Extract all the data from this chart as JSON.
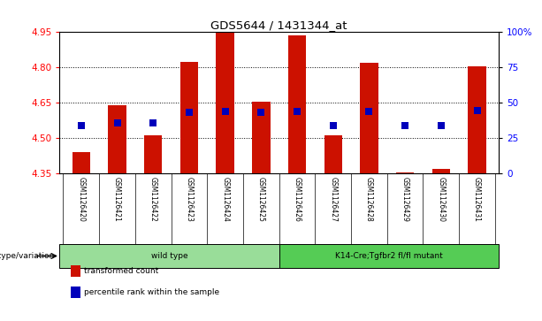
{
  "title": "GDS5644 / 1431344_at",
  "samples": [
    "GSM1126420",
    "GSM1126421",
    "GSM1126422",
    "GSM1126423",
    "GSM1126424",
    "GSM1126425",
    "GSM1126426",
    "GSM1126427",
    "GSM1126428",
    "GSM1126429",
    "GSM1126430",
    "GSM1126431"
  ],
  "bar_values": [
    4.44,
    4.638,
    4.51,
    4.825,
    4.95,
    4.655,
    4.935,
    4.51,
    4.82,
    4.355,
    4.37,
    4.805
  ],
  "percentile_values": [
    4.553,
    4.563,
    4.563,
    4.608,
    4.612,
    4.608,
    4.612,
    4.553,
    4.612,
    4.553,
    4.553,
    4.618
  ],
  "ylim_left": [
    4.35,
    4.95
  ],
  "ylim_right": [
    0,
    100
  ],
  "yticks_left": [
    4.35,
    4.5,
    4.65,
    4.8,
    4.95
  ],
  "yticks_right": [
    0,
    25,
    50,
    75,
    100
  ],
  "ytick_labels_right": [
    "0",
    "25",
    "50",
    "75",
    "100%"
  ],
  "bar_color": "#cc1100",
  "percentile_color": "#0000bb",
  "bar_bottom": 4.35,
  "groups": [
    {
      "label": "wild type",
      "n": 6,
      "color": "#99dd99"
    },
    {
      "label": "K14-Cre;Tgfbr2 fl/fl mutant",
      "n": 6,
      "color": "#55cc55"
    }
  ],
  "legend_items": [
    {
      "label": "transformed count",
      "color": "#cc1100"
    },
    {
      "label": "percentile rank within the sample",
      "color": "#0000bb"
    }
  ],
  "genotype_label": "genotype/variation",
  "bar_width": 0.5,
  "percentile_marker_size": 28
}
